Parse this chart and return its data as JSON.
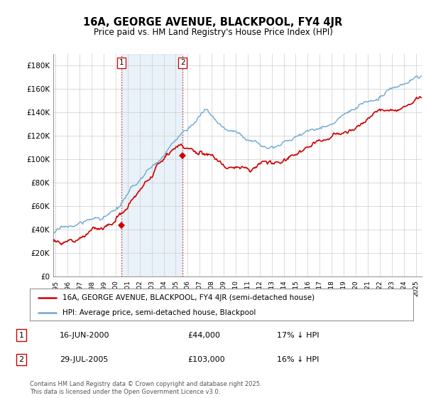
{
  "title": "16A, GEORGE AVENUE, BLACKPOOL, FY4 4JR",
  "subtitle": "Price paid vs. HM Land Registry's House Price Index (HPI)",
  "ylabel_ticks": [
    "£0",
    "£20K",
    "£40K",
    "£60K",
    "£80K",
    "£100K",
    "£120K",
    "£140K",
    "£160K",
    "£180K"
  ],
  "ytick_values": [
    0,
    20000,
    40000,
    60000,
    80000,
    100000,
    120000,
    140000,
    160000,
    180000
  ],
  "ylim": [
    0,
    190000
  ],
  "xlim_start": 1994.8,
  "xlim_end": 2025.5,
  "hpi_color": "#6fa8d4",
  "hpi_fill_color": "#ddeeff",
  "price_color": "#cc0000",
  "annotation_color": "#cc0000",
  "purchase_1_x": 2000.46,
  "purchase_1_y": 44000,
  "purchase_1_label": "1",
  "purchase_1_date": "16-JUN-2000",
  "purchase_1_price": "£44,000",
  "purchase_1_hpi": "17% ↓ HPI",
  "purchase_2_x": 2005.58,
  "purchase_2_y": 103000,
  "purchase_2_label": "2",
  "purchase_2_date": "29-JUL-2005",
  "purchase_2_price": "£103,000",
  "purchase_2_hpi": "16% ↓ HPI",
  "legend_label_price": "16A, GEORGE AVENUE, BLACKPOOL, FY4 4JR (semi-detached house)",
  "legend_label_hpi": "HPI: Average price, semi-detached house, Blackpool",
  "footer": "Contains HM Land Registry data © Crown copyright and database right 2025.\nThis data is licensed under the Open Government Licence v3.0.",
  "background_color": "#ffffff",
  "grid_color": "#cccccc"
}
